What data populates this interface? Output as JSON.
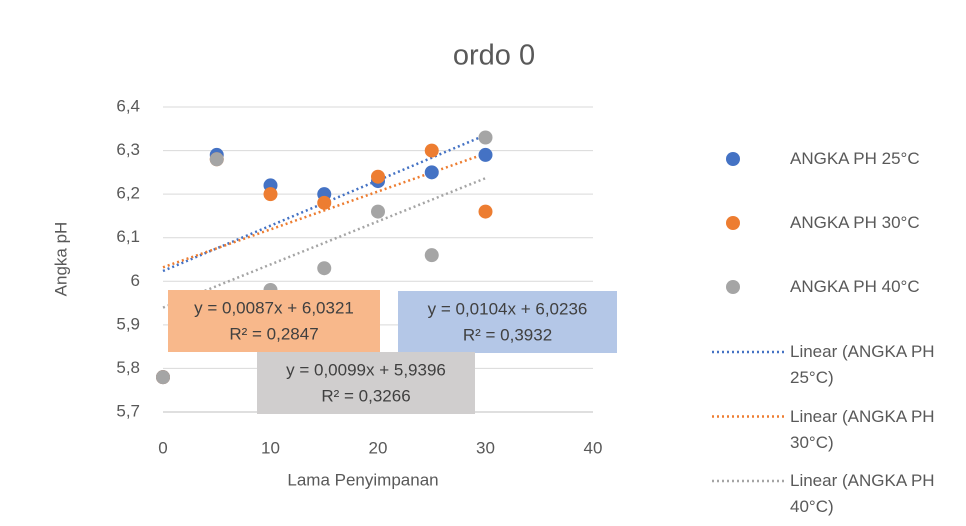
{
  "chart_data": {
    "type": "scatter",
    "title": "ordo 0",
    "x_label": "Lama Penyimpanan",
    "y_label": "Angka pH",
    "x": [
      0,
      5,
      10,
      15,
      20,
      25,
      30
    ],
    "series": [
      {
        "name": "ANGKA PH 25°C",
        "color": "#4472c4",
        "values": [
          5.78,
          6.29,
          6.22,
          6.2,
          6.23,
          6.25,
          6.29
        ],
        "trendline": {
          "name": "Linear (ANGKA PH 25°C)",
          "slope": 0.0104,
          "intercept": 6.0236,
          "equation": "y = 0,0104x + 6,0236",
          "r_squared": "R² = 0,3932"
        }
      },
      {
        "name": "ANGKA PH 30°C",
        "color": "#ed7d31",
        "values": [
          5.78,
          6.28,
          6.2,
          6.18,
          6.24,
          6.3,
          6.16
        ],
        "trendline": {
          "name": "Linear (ANGKA PH 30°C)",
          "slope": 0.0087,
          "intercept": 6.0321,
          "equation": "y = 0,0087x + 6,0321",
          "r_squared": "R² = 0,2847"
        }
      },
      {
        "name": "ANGKA PH 40°C",
        "color": "#a5a5a5",
        "values": [
          5.78,
          6.28,
          5.98,
          6.03,
          6.16,
          6.06,
          6.33
        ],
        "trendline": {
          "name": "Linear (ANGKA PH 40°C)",
          "slope": 0.0099,
          "intercept": 5.9396,
          "equation": "y = 0,0099x + 5,9396",
          "r_squared": "R² = 0,3266"
        }
      }
    ],
    "xlim": [
      0,
      40
    ],
    "xticks": [
      0,
      10,
      20,
      30,
      40
    ],
    "ylim": [
      5.7,
      6.4
    ],
    "yticks": [
      {
        "value": 5.7,
        "label": "5,7"
      },
      {
        "value": 5.8,
        "label": "5,8"
      },
      {
        "value": 5.9,
        "label": "5,9"
      },
      6,
      {
        "value": 6.1,
        "label": "6,1"
      },
      {
        "value": 6.2,
        "label": "6,2"
      },
      {
        "value": 6.3,
        "label": "6,3"
      },
      {
        "value": 6.4,
        "label": "6,4"
      }
    ],
    "grid": true,
    "legend": "right"
  }
}
